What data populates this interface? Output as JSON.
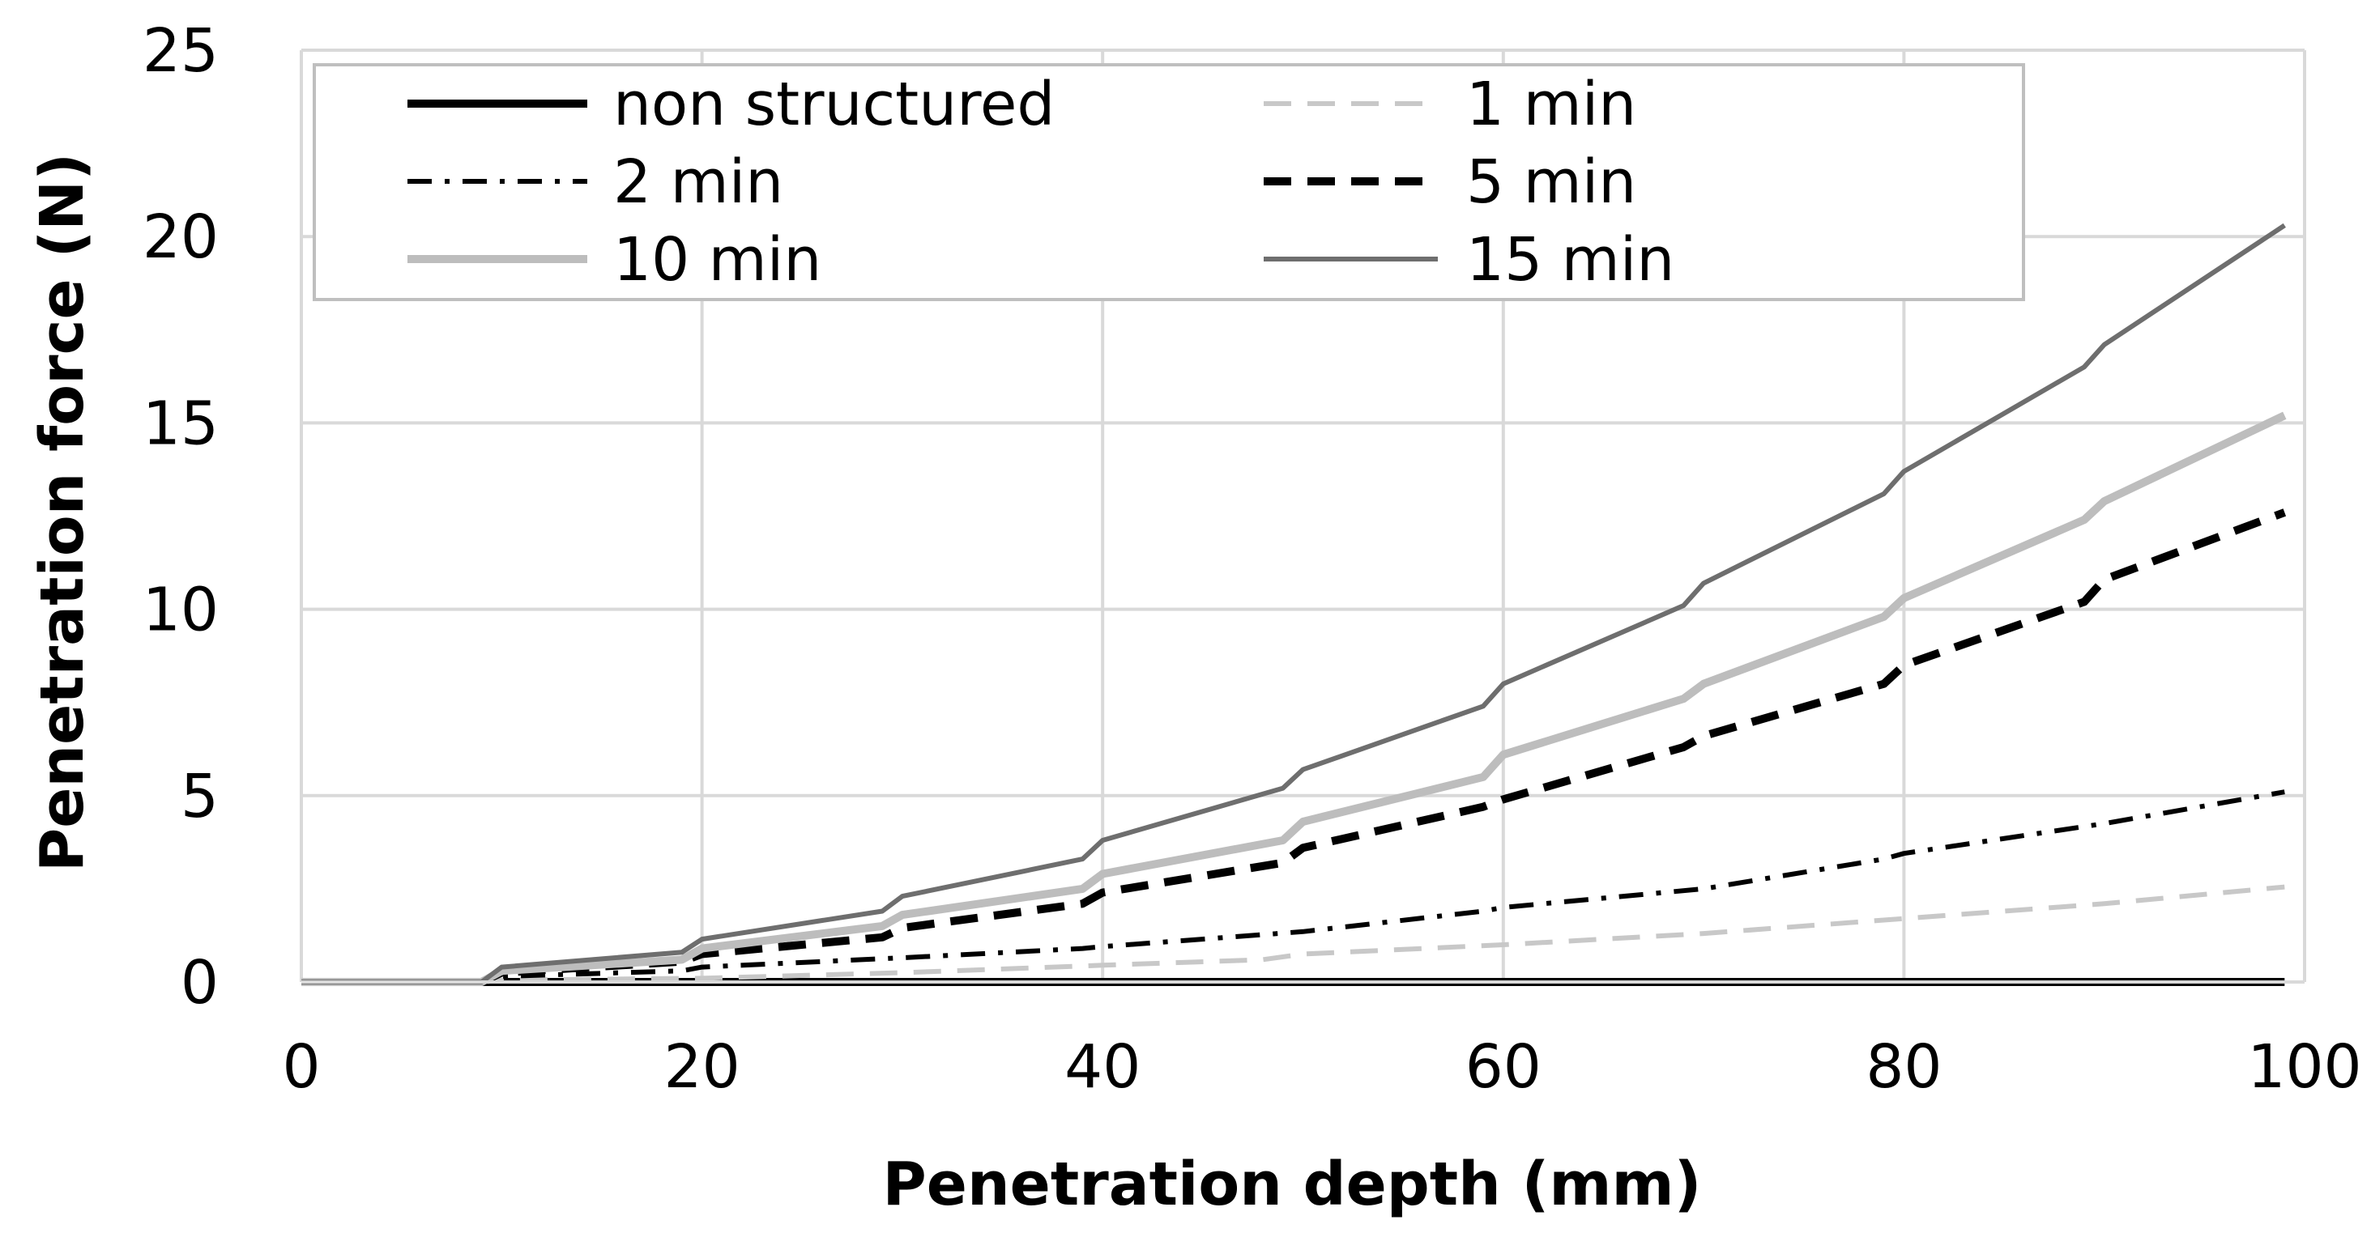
{
  "chart_data": {
    "type": "line",
    "title": "",
    "xlabel": "Penetration depth (mm)",
    "ylabel": "Penetration force (N)",
    "xlim": [
      0,
      100
    ],
    "ylim": [
      0,
      25
    ],
    "xticks": [
      0,
      20,
      40,
      60,
      80,
      100
    ],
    "yticks": [
      0,
      5,
      10,
      15,
      20,
      25
    ],
    "xtick_labels": [
      "0",
      "20",
      "40",
      "60",
      "80",
      "100"
    ],
    "ytick_labels": [
      "0",
      "5",
      "10",
      "15",
      "20",
      "25"
    ],
    "grid": true,
    "legend_position": "top-left",
    "series": [
      {
        "name": "non structured",
        "color": "#000000",
        "style": "solid",
        "weight": "thick",
        "x": [
          0,
          10,
          20,
          30,
          40,
          50,
          60,
          70,
          80,
          90,
          99
        ],
        "y": [
          0,
          0,
          0,
          0,
          0,
          0,
          0,
          0,
          0,
          0,
          0
        ]
      },
      {
        "name": "1 min",
        "color": "#c8c8c8",
        "style": "dash",
        "weight": "medium",
        "x": [
          0,
          9,
          10,
          20,
          30,
          40,
          48,
          50,
          60,
          70,
          80,
          90,
          99
        ],
        "y": [
          0,
          0,
          0.05,
          0.1,
          0.25,
          0.45,
          0.6,
          0.75,
          1.0,
          1.3,
          1.7,
          2.1,
          2.55
        ]
      },
      {
        "name": "2 min",
        "color": "#000000",
        "style": "dashdot",
        "weight": "medium",
        "x": [
          0,
          9,
          10,
          19,
          20,
          30,
          39,
          40,
          50,
          59,
          60,
          70,
          79,
          80,
          90,
          99
        ],
        "y": [
          0,
          0,
          0.15,
          0.3,
          0.4,
          0.65,
          0.9,
          0.95,
          1.35,
          1.9,
          2.0,
          2.5,
          3.3,
          3.45,
          4.25,
          5.1
        ]
      },
      {
        "name": "5 min",
        "color": "#000000",
        "style": "dash",
        "weight": "thick",
        "x": [
          0,
          9,
          10,
          19,
          20,
          29,
          30,
          39,
          40,
          49,
          50,
          59,
          60,
          69,
          70,
          79,
          80,
          89,
          90,
          99
        ],
        "y": [
          0,
          0,
          0.25,
          0.55,
          0.75,
          1.2,
          1.45,
          2.1,
          2.4,
          3.2,
          3.6,
          4.7,
          4.9,
          6.3,
          6.6,
          8.0,
          8.5,
          10.2,
          10.8,
          12.6
        ]
      },
      {
        "name": "10 min",
        "color": "#bdbdbd",
        "style": "solid",
        "weight": "thick",
        "x": [
          0,
          9,
          10,
          19,
          20,
          29,
          30,
          39,
          40,
          49,
          50,
          59,
          60,
          69,
          70,
          79,
          80,
          89,
          90,
          99
        ],
        "y": [
          0,
          0,
          0.3,
          0.6,
          0.9,
          1.5,
          1.8,
          2.5,
          2.9,
          3.8,
          4.3,
          5.5,
          6.1,
          7.6,
          8.0,
          9.8,
          10.3,
          12.4,
          12.9,
          15.2
        ]
      },
      {
        "name": "15 min",
        "color": "#6e6e6e",
        "style": "solid",
        "weight": "medium",
        "x": [
          0,
          9,
          10,
          19,
          20,
          29,
          30,
          39,
          40,
          49,
          50,
          59,
          60,
          69,
          70,
          79,
          80,
          89,
          90,
          99
        ],
        "y": [
          0,
          0,
          0.4,
          0.8,
          1.15,
          1.9,
          2.3,
          3.3,
          3.8,
          5.2,
          5.7,
          7.4,
          8.0,
          10.1,
          10.7,
          13.1,
          13.7,
          16.5,
          17.1,
          20.3
        ]
      }
    ]
  }
}
